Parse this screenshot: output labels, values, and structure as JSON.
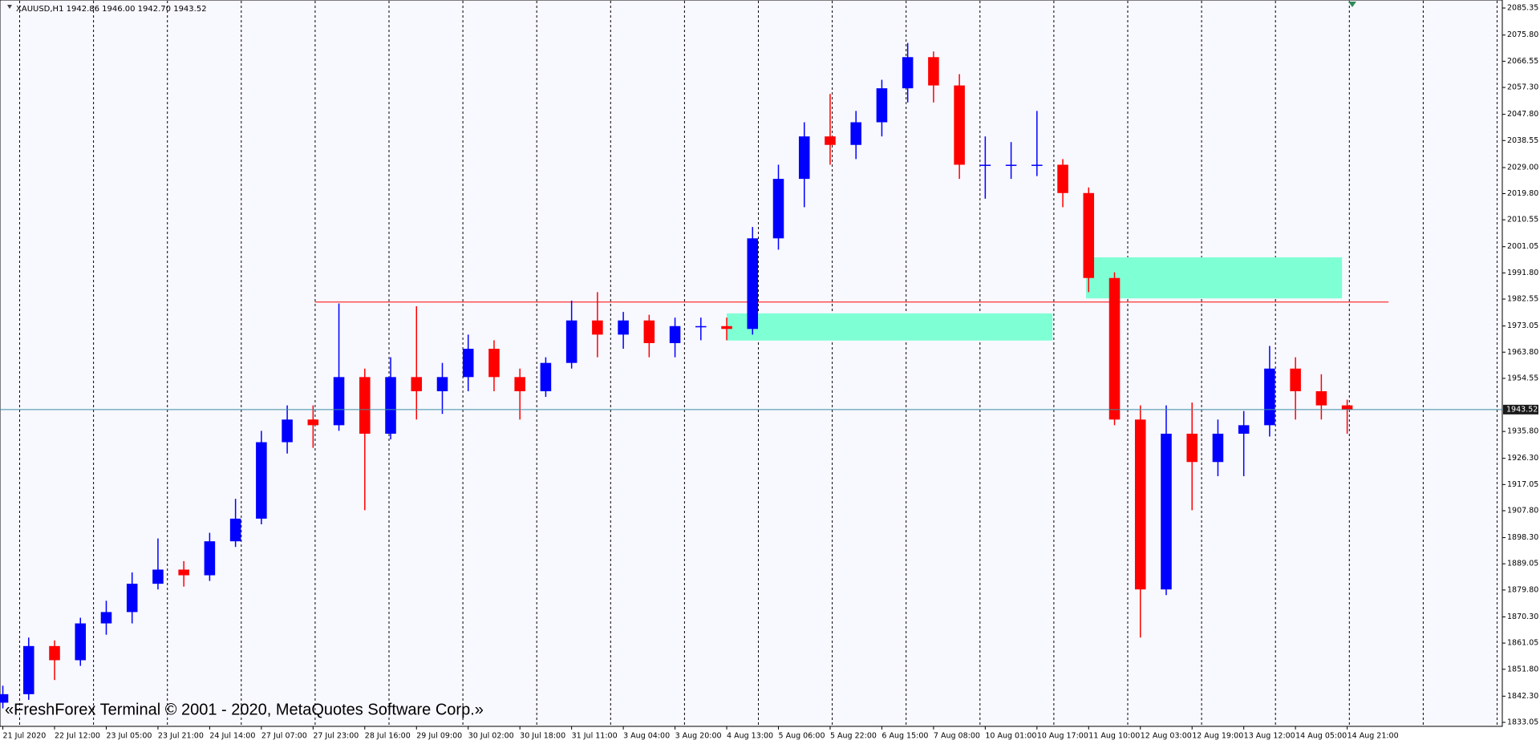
{
  "chart_data": {
    "type": "candlestick",
    "title": "XAUUSD,H1  1942.86 1946.00 1942.70 1943.52",
    "watermark": "«FreshForex Terminal © 2001 - 2020, MetaQuotes Software Corp.»",
    "open": [
      1840,
      1843,
      1860,
      1855,
      1868,
      1872,
      1882,
      1887,
      1885,
      1897,
      1905,
      1932,
      1940,
      1938,
      1955,
      1935,
      1955,
      1950,
      1955,
      1965,
      1955,
      1950,
      1960,
      1975,
      1970,
      1975,
      1967,
      1973,
      1973,
      1972,
      2004,
      2025,
      2040,
      2037,
      2045,
      2057,
      2068,
      2058,
      2030,
      2030,
      2030,
      2030,
      2020,
      1990,
      1940,
      1880,
      1935,
      1925,
      1935,
      1938,
      1958,
      1950,
      1945
    ],
    "high": [
      1846,
      1863,
      1862,
      1870,
      1876,
      1886,
      1898,
      1890,
      1900,
      1912,
      1936,
      1945,
      1945,
      1981,
      1958,
      1962,
      1980,
      1960,
      1970,
      1968,
      1958,
      1962,
      1982,
      1985,
      1978,
      1977,
      1976,
      1976,
      1976,
      2008,
      2030,
      2045,
      2055,
      2049,
      2060,
      2073,
      2070,
      2062,
      2040,
      2038,
      2049,
      2032,
      2022,
      1992,
      1945,
      1945,
      1946,
      1940,
      1943,
      1966,
      1962,
      1956,
      1947
    ],
    "low": [
      1838,
      1841,
      1848,
      1853,
      1864,
      1868,
      1880,
      1881,
      1883,
      1895,
      1903,
      1928,
      1930,
      1936,
      1908,
      1933,
      1940,
      1942,
      1950,
      1950,
      1940,
      1948,
      1958,
      1962,
      1965,
      1962,
      1962,
      1968,
      1968,
      1970,
      2000,
      2015,
      2030,
      2032,
      2040,
      2052,
      2052,
      2025,
      2018,
      2025,
      2026,
      2015,
      1985,
      1938,
      1863,
      1878,
      1908,
      1920,
      1920,
      1934,
      1940,
      1940,
      1935
    ],
    "close": [
      1843,
      1860,
      1855,
      1868,
      1872,
      1882,
      1887,
      1885,
      1897,
      1905,
      1932,
      1940,
      1938,
      1955,
      1935,
      1955,
      1950,
      1955,
      1965,
      1955,
      1950,
      1960,
      1975,
      1970,
      1975,
      1967,
      1973,
      1973,
      1972,
      2004,
      2025,
      2040,
      2037,
      2045,
      2057,
      2068,
      2058,
      2030,
      2030,
      2030,
      2030,
      2020,
      1990,
      1940,
      1880,
      1935,
      1925,
      1935,
      1938,
      1958,
      1950,
      1945,
      1943.52
    ],
    "up_color": "#0000ff",
    "down_color": "#ff0000",
    "xlim": [
      -0.11,
      58
    ],
    "xticks": [
      {
        "value": 0,
        "label": "21 Jul 2020"
      },
      {
        "value": 2,
        "label": "22 Jul 12:00"
      },
      {
        "value": 4,
        "label": "23 Jul 05:00"
      },
      {
        "value": 6,
        "label": "23 Jul 21:00"
      },
      {
        "value": 8,
        "label": "24 Jul 14:00"
      },
      {
        "value": 10,
        "label": "27 Jul 07:00"
      },
      {
        "value": 12,
        "label": "27 Jul 23:00"
      },
      {
        "value": 14,
        "label": "28 Jul 16:00"
      },
      {
        "value": 16,
        "label": "29 Jul 09:00"
      },
      {
        "value": 18,
        "label": "30 Jul 02:00"
      },
      {
        "value": 20,
        "label": "30 Jul 18:00"
      },
      {
        "value": 22,
        "label": "31 Jul 11:00"
      },
      {
        "value": 24,
        "label": "3 Aug 04:00"
      },
      {
        "value": 26,
        "label": "3 Aug 20:00"
      },
      {
        "value": 28,
        "label": "4 Aug 13:00"
      },
      {
        "value": 30,
        "label": "5 Aug 06:00"
      },
      {
        "value": 32,
        "label": "5 Aug 22:00"
      },
      {
        "value": 34,
        "label": "6 Aug 15:00"
      },
      {
        "value": 36,
        "label": "7 Aug 08:00"
      },
      {
        "value": 38,
        "label": "10 Aug 01:00"
      },
      {
        "value": 40,
        "label": "10 Aug 17:00"
      },
      {
        "value": 42,
        "label": "11 Aug 10:00"
      },
      {
        "value": 44,
        "label": "12 Aug 03:00"
      },
      {
        "value": 46,
        "label": "12 Aug 19:00"
      },
      {
        "value": 48,
        "label": "13 Aug 12:00"
      },
      {
        "value": 50,
        "label": "14 Aug 05:00"
      },
      {
        "value": 52,
        "label": "14 Aug 21:00"
      }
    ],
    "ylim": [
      1833.05,
      2085.35
    ],
    "yticks": [
      2085.35,
      {
        "value": 2075.8,
        "label": "2075.80"
      },
      2066.55,
      {
        "value": 2057.3,
        "label": "2057.30"
      },
      {
        "value": 2047.8,
        "label": "2047.80"
      },
      2038.55,
      {
        "value": 2029,
        "label": "2029.00"
      },
      {
        "value": 2019.8,
        "label": "2019.80"
      },
      2010.55,
      2001.05,
      {
        "value": 1991.8,
        "label": "1991.80"
      },
      1982.55,
      1973.05,
      {
        "value": 1963.8,
        "label": "1963.80"
      },
      1954.55,
      {
        "value": 1935.8,
        "label": "1935.80"
      },
      {
        "value": 1926.3,
        "label": "1926.30"
      },
      1917.05,
      {
        "value": 1907.8,
        "label": "1907.80"
      },
      {
        "value": 1898.3,
        "label": "1898.30"
      },
      1889.05,
      {
        "value": 1879.8,
        "label": "1879.80"
      },
      {
        "value": 1870.3,
        "label": "1870.30"
      },
      1861.05,
      {
        "value": 1851.8,
        "label": "1851.80"
      },
      {
        "value": 1842.3,
        "label": "1842.30"
      },
      1833.05
    ],
    "bid": {
      "value": 1943.52,
      "color": "#3a8fa0"
    },
    "level": {
      "value": 1981.5,
      "x": [
        12.07,
        53.6
      ],
      "color": "#ff0000"
    },
    "zones": [
      {
        "x": [
          28,
          40.6
        ],
        "y": [
          1977.5,
          1967.9
        ],
        "color": "#7fffd4"
      },
      {
        "x": [
          41.9,
          51.8
        ],
        "y": [
          1997.3,
          1982.8
        ],
        "color": "#7fffd4"
      }
    ]
  }
}
